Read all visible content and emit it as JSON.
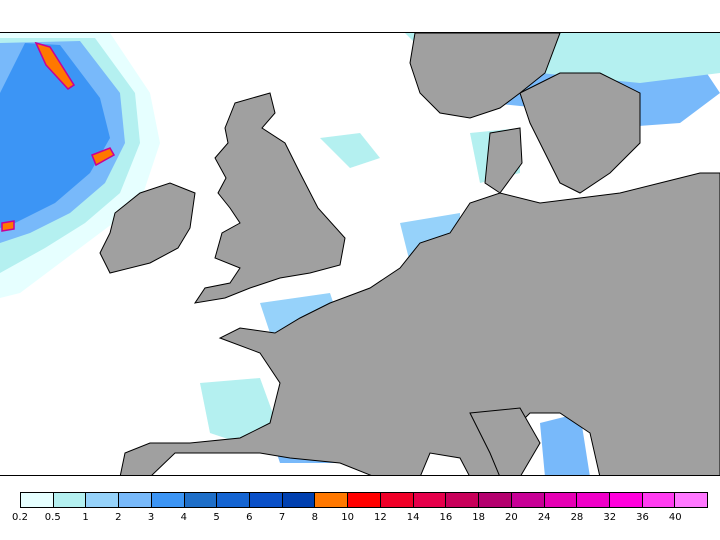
{
  "legend": {
    "bins": [
      {
        "label": "0.2",
        "color": "#e6ffff"
      },
      {
        "label": "0.5",
        "color": "#b4f0f0"
      },
      {
        "label": "1",
        "color": "#96d2fa"
      },
      {
        "label": "2",
        "color": "#78b9fa"
      },
      {
        "label": "3",
        "color": "#3c95f5"
      },
      {
        "label": "4",
        "color": "#1e6ec8"
      },
      {
        "label": "5",
        "color": "#1464d2"
      },
      {
        "label": "6",
        "color": "#0a50c8"
      },
      {
        "label": "7",
        "color": "#0040b0"
      },
      {
        "label": "8",
        "color": "#ff7800"
      },
      {
        "label": "10",
        "color": "#ff0000"
      },
      {
        "label": "12",
        "color": "#f00028"
      },
      {
        "label": "14",
        "color": "#e6004b"
      },
      {
        "label": "16",
        "color": "#c8005a"
      },
      {
        "label": "18",
        "color": "#b4006e"
      },
      {
        "label": "20",
        "color": "#c80096"
      },
      {
        "label": "24",
        "color": "#e600b4"
      },
      {
        "label": "28",
        "color": "#f000c8"
      },
      {
        "label": "32",
        "color": "#ff00dc"
      },
      {
        "label": "36",
        "color": "#ff3cf0"
      },
      {
        "label": "40",
        "color": "#ff78ff"
      }
    ]
  },
  "map_colors": {
    "land": "#a0a0a0",
    "sea": "#ffffff",
    "border": "#000000"
  }
}
